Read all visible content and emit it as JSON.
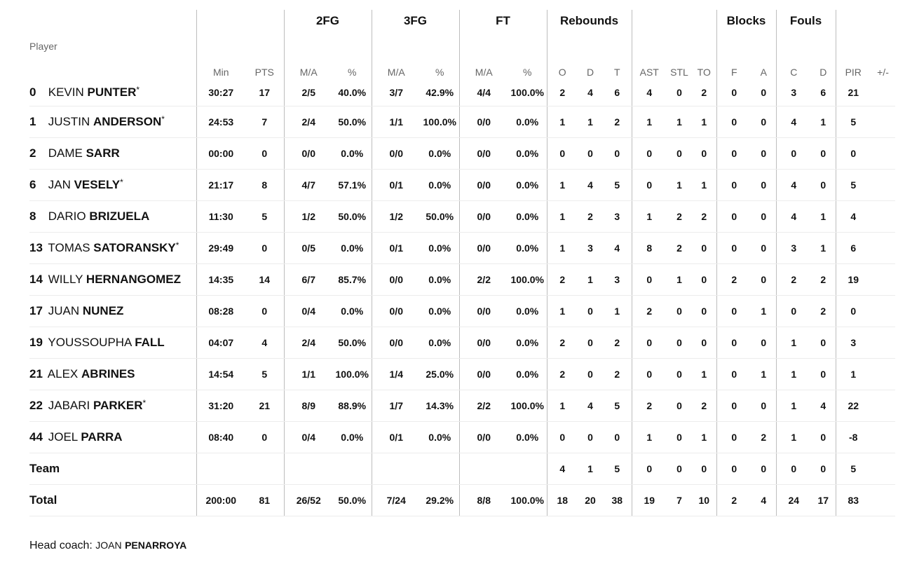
{
  "groups": {
    "two_fg": "2FG",
    "three_fg": "3FG",
    "ft": "FT",
    "rebounds": "Rebounds",
    "blocks": "Blocks",
    "fouls": "Fouls"
  },
  "columns": {
    "player": "Player",
    "min": "Min",
    "pts": "PTS",
    "fg2_ma": "M/A",
    "fg2_pct": "%",
    "fg3_ma": "M/A",
    "fg3_pct": "%",
    "ft_ma": "M/A",
    "ft_pct": "%",
    "reb_o": "O",
    "reb_d": "D",
    "reb_t": "T",
    "ast": "AST",
    "stl": "STL",
    "to": "TO",
    "blk_f": "F",
    "blk_a": "A",
    "foul_c": "C",
    "foul_d": "D",
    "pir": "PIR",
    "pm": "+/-"
  },
  "players": [
    {
      "num": "0",
      "first": "KEVIN",
      "last": "PUNTER",
      "star": "*",
      "min": "30:27",
      "pts": "17",
      "fg2": "2/5",
      "fg2p": "40.0%",
      "fg3": "3/7",
      "fg3p": "42.9%",
      "ft": "4/4",
      "ftp": "100.0%",
      "o": "2",
      "d": "4",
      "t": "6",
      "ast": "4",
      "stl": "0",
      "to": "2",
      "bf": "0",
      "ba": "0",
      "fc": "3",
      "fd": "6",
      "pir": "21",
      "pm": ""
    },
    {
      "num": "1",
      "first": "JUSTIN",
      "last": "ANDERSON",
      "star": "*",
      "min": "24:53",
      "pts": "7",
      "fg2": "2/4",
      "fg2p": "50.0%",
      "fg3": "1/1",
      "fg3p": "100.0%",
      "ft": "0/0",
      "ftp": "0.0%",
      "o": "1",
      "d": "1",
      "t": "2",
      "ast": "1",
      "stl": "1",
      "to": "1",
      "bf": "0",
      "ba": "0",
      "fc": "4",
      "fd": "1",
      "pir": "5",
      "pm": ""
    },
    {
      "num": "2",
      "first": "DAME",
      "last": "SARR",
      "star": "",
      "min": "00:00",
      "pts": "0",
      "fg2": "0/0",
      "fg2p": "0.0%",
      "fg3": "0/0",
      "fg3p": "0.0%",
      "ft": "0/0",
      "ftp": "0.0%",
      "o": "0",
      "d": "0",
      "t": "0",
      "ast": "0",
      "stl": "0",
      "to": "0",
      "bf": "0",
      "ba": "0",
      "fc": "0",
      "fd": "0",
      "pir": "0",
      "pm": ""
    },
    {
      "num": "6",
      "first": "JAN",
      "last": "VESELY",
      "star": "*",
      "min": "21:17",
      "pts": "8",
      "fg2": "4/7",
      "fg2p": "57.1%",
      "fg3": "0/1",
      "fg3p": "0.0%",
      "ft": "0/0",
      "ftp": "0.0%",
      "o": "1",
      "d": "4",
      "t": "5",
      "ast": "0",
      "stl": "1",
      "to": "1",
      "bf": "0",
      "ba": "0",
      "fc": "4",
      "fd": "0",
      "pir": "5",
      "pm": ""
    },
    {
      "num": "8",
      "first": "DARIO",
      "last": "BRIZUELA",
      "star": "",
      "min": "11:30",
      "pts": "5",
      "fg2": "1/2",
      "fg2p": "50.0%",
      "fg3": "1/2",
      "fg3p": "50.0%",
      "ft": "0/0",
      "ftp": "0.0%",
      "o": "1",
      "d": "2",
      "t": "3",
      "ast": "1",
      "stl": "2",
      "to": "2",
      "bf": "0",
      "ba": "0",
      "fc": "4",
      "fd": "1",
      "pir": "4",
      "pm": ""
    },
    {
      "num": "13",
      "first": "TOMAS",
      "last": "SATORANSKY",
      "star": "*",
      "min": "29:49",
      "pts": "0",
      "fg2": "0/5",
      "fg2p": "0.0%",
      "fg3": "0/1",
      "fg3p": "0.0%",
      "ft": "0/0",
      "ftp": "0.0%",
      "o": "1",
      "d": "3",
      "t": "4",
      "ast": "8",
      "stl": "2",
      "to": "0",
      "bf": "0",
      "ba": "0",
      "fc": "3",
      "fd": "1",
      "pir": "6",
      "pm": ""
    },
    {
      "num": "14",
      "first": "WILLY",
      "last": "HERNANGOMEZ",
      "star": "",
      "min": "14:35",
      "pts": "14",
      "fg2": "6/7",
      "fg2p": "85.7%",
      "fg3": "0/0",
      "fg3p": "0.0%",
      "ft": "2/2",
      "ftp": "100.0%",
      "o": "2",
      "d": "1",
      "t": "3",
      "ast": "0",
      "stl": "1",
      "to": "0",
      "bf": "2",
      "ba": "0",
      "fc": "2",
      "fd": "2",
      "pir": "19",
      "pm": ""
    },
    {
      "num": "17",
      "first": "JUAN",
      "last": "NUNEZ",
      "star": "",
      "min": "08:28",
      "pts": "0",
      "fg2": "0/4",
      "fg2p": "0.0%",
      "fg3": "0/0",
      "fg3p": "0.0%",
      "ft": "0/0",
      "ftp": "0.0%",
      "o": "1",
      "d": "0",
      "t": "1",
      "ast": "2",
      "stl": "0",
      "to": "0",
      "bf": "0",
      "ba": "1",
      "fc": "0",
      "fd": "2",
      "pir": "0",
      "pm": ""
    },
    {
      "num": "19",
      "first": "YOUSSOUPHA",
      "last": "FALL",
      "star": "",
      "min": "04:07",
      "pts": "4",
      "fg2": "2/4",
      "fg2p": "50.0%",
      "fg3": "0/0",
      "fg3p": "0.0%",
      "ft": "0/0",
      "ftp": "0.0%",
      "o": "2",
      "d": "0",
      "t": "2",
      "ast": "0",
      "stl": "0",
      "to": "0",
      "bf": "0",
      "ba": "0",
      "fc": "1",
      "fd": "0",
      "pir": "3",
      "pm": ""
    },
    {
      "num": "21",
      "first": "ALEX",
      "last": "ABRINES",
      "star": "",
      "min": "14:54",
      "pts": "5",
      "fg2": "1/1",
      "fg2p": "100.0%",
      "fg3": "1/4",
      "fg3p": "25.0%",
      "ft": "0/0",
      "ftp": "0.0%",
      "o": "2",
      "d": "0",
      "t": "2",
      "ast": "0",
      "stl": "0",
      "to": "1",
      "bf": "0",
      "ba": "1",
      "fc": "1",
      "fd": "0",
      "pir": "1",
      "pm": ""
    },
    {
      "num": "22",
      "first": "JABARI",
      "last": "PARKER",
      "star": "*",
      "min": "31:20",
      "pts": "21",
      "fg2": "8/9",
      "fg2p": "88.9%",
      "fg3": "1/7",
      "fg3p": "14.3%",
      "ft": "2/2",
      "ftp": "100.0%",
      "o": "1",
      "d": "4",
      "t": "5",
      "ast": "2",
      "stl": "0",
      "to": "2",
      "bf": "0",
      "ba": "0",
      "fc": "1",
      "fd": "4",
      "pir": "22",
      "pm": ""
    },
    {
      "num": "44",
      "first": "JOEL",
      "last": "PARRA",
      "star": "",
      "min": "08:40",
      "pts": "0",
      "fg2": "0/4",
      "fg2p": "0.0%",
      "fg3": "0/1",
      "fg3p": "0.0%",
      "ft": "0/0",
      "ftp": "0.0%",
      "o": "0",
      "d": "0",
      "t": "0",
      "ast": "1",
      "stl": "0",
      "to": "1",
      "bf": "0",
      "ba": "2",
      "fc": "1",
      "fd": "0",
      "pir": "-8",
      "pm": ""
    }
  ],
  "team": {
    "label": "Team",
    "o": "4",
    "d": "1",
    "t": "5",
    "ast": "0",
    "stl": "0",
    "to": "0",
    "bf": "0",
    "ba": "0",
    "fc": "0",
    "fd": "0",
    "pir": "5"
  },
  "total": {
    "label": "Total",
    "min": "200:00",
    "pts": "81",
    "fg2": "26/52",
    "fg2p": "50.0%",
    "fg3": "7/24",
    "fg3p": "29.2%",
    "ft": "8/8",
    "ftp": "100.0%",
    "o": "18",
    "d": "20",
    "t": "38",
    "ast": "19",
    "stl": "7",
    "to": "10",
    "bf": "2",
    "ba": "4",
    "fc": "24",
    "fd": "17",
    "pir": "83"
  },
  "coach": {
    "label": "Head coach:",
    "first": "JOAN",
    "last": "PENARROYA"
  }
}
